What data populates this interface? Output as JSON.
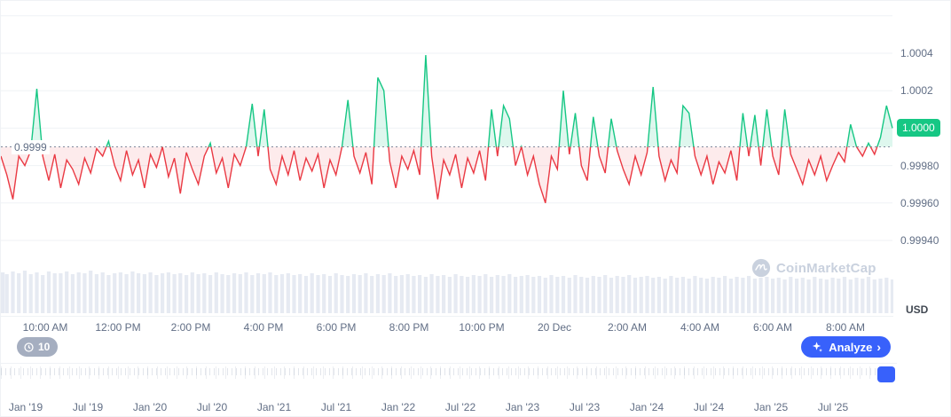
{
  "chart_data": {
    "type": "line",
    "unit_label": "USD",
    "baseline": {
      "value": 0.9999,
      "label": "0.9999"
    },
    "current_price": {
      "value": 1.0,
      "label": "1.0000"
    },
    "y_axis": {
      "labels": [
        {
          "value": 1.0004,
          "text": "1.0004"
        },
        {
          "value": 1.0002,
          "text": "1.0002"
        },
        {
          "value": 0.9998,
          "text": "0.99980"
        },
        {
          "value": 0.9996,
          "text": "0.99960"
        },
        {
          "value": 0.9994,
          "text": "0.99940"
        }
      ],
      "gridline_values": [
        1.0006,
        1.0004,
        1.0002,
        1.0,
        0.9998,
        0.9996,
        0.9994
      ]
    },
    "x_ticks": [
      "10:00 AM",
      "12:00 PM",
      "2:00 PM",
      "4:00 PM",
      "6:00 PM",
      "8:00 PM",
      "10:00 PM",
      "20 Dec",
      "2:00 AM",
      "4:00 AM",
      "6:00 AM",
      "8:00 AM"
    ],
    "ylim": [
      0.9992,
      1.0006
    ],
    "prices": [
      0.99985,
      0.99975,
      0.99962,
      0.99985,
      0.9998,
      0.99988,
      1.00021,
      0.99985,
      0.99972,
      0.99986,
      0.99968,
      0.99983,
      0.99978,
      0.9997,
      0.99984,
      0.99976,
      0.99989,
      0.99985,
      0.99993,
      0.9998,
      0.99972,
      0.99988,
      0.99975,
      0.99983,
      0.99968,
      0.99986,
      0.99979,
      0.9999,
      0.99974,
      0.99984,
      0.99965,
      0.99987,
      0.99978,
      0.9997,
      0.99985,
      0.99992,
      0.99976,
      0.99984,
      0.99968,
      0.99986,
      0.9998,
      0.9999,
      1.00013,
      0.99985,
      1.0001,
      0.99978,
      0.9997,
      0.99985,
      0.99975,
      0.99988,
      0.99972,
      0.99984,
      0.99977,
      0.99986,
      0.99968,
      0.99983,
      0.99975,
      0.9999,
      1.00015,
      0.99985,
      0.99976,
      0.99987,
      0.9997,
      1.00027,
      1.0002,
      0.99982,
      0.99968,
      0.99985,
      0.99978,
      0.99988,
      0.99975,
      1.00039,
      0.99985,
      0.99962,
      0.99983,
      0.99975,
      0.99986,
      0.99968,
      0.99984,
      0.99976,
      0.99988,
      0.99972,
      1.0001,
      0.99985,
      1.00012,
      1.00005,
      0.9998,
      0.9999,
      0.99975,
      0.99985,
      0.9997,
      0.9996,
      0.99985,
      0.99978,
      1.0002,
      0.99986,
      1.00008,
      0.9998,
      0.99972,
      1.00006,
      0.99985,
      0.99976,
      1.00005,
      0.99988,
      0.99978,
      0.9997,
      0.99985,
      0.99975,
      0.99987,
      1.00022,
      0.99985,
      0.99972,
      0.99983,
      0.99976,
      1.00012,
      1.00008,
      0.99985,
      0.99975,
      0.99985,
      0.9997,
      0.99982,
      0.99976,
      0.99988,
      0.99972,
      1.00008,
      0.99985,
      1.00007,
      0.9998,
      1.0001,
      0.99985,
      0.99975,
      1.0001,
      0.99986,
      0.99978,
      0.9997,
      0.99983,
      0.99975,
      0.99985,
      0.99972,
      0.9998,
      0.99987,
      0.99982,
      1.00002,
      0.9999,
      0.99985,
      0.99992,
      0.99986,
      0.99995,
      1.00012,
      1.0
    ],
    "volumes": [
      46,
      44,
      47,
      45,
      48,
      44,
      46,
      43,
      47,
      45,
      45,
      47,
      44,
      46,
      45,
      48,
      44,
      46,
      43,
      45,
      46,
      44,
      47,
      45,
      44,
      46,
      43,
      45,
      46,
      44,
      45,
      43,
      46,
      44,
      45,
      43,
      46,
      44,
      43,
      45,
      44,
      46,
      43,
      45,
      44,
      46,
      43,
      44,
      45,
      43,
      44,
      42,
      45,
      43,
      44,
      42,
      45,
      43,
      42,
      44,
      43,
      45,
      42,
      44,
      43,
      45,
      42,
      43,
      44,
      42,
      43,
      41,
      44,
      42,
      43,
      41,
      44,
      42,
      41,
      43,
      42,
      44,
      41,
      43,
      42,
      44,
      41,
      42,
      43,
      41,
      42,
      40,
      43,
      41,
      42,
      40,
      43,
      41,
      40,
      42,
      41,
      43,
      40,
      42,
      41,
      43,
      40,
      41,
      42,
      40,
      41,
      39,
      42,
      40,
      41,
      39,
      42,
      40,
      39,
      41,
      40,
      42,
      39,
      41,
      40,
      42,
      39,
      40,
      41,
      39,
      40,
      38,
      41,
      39,
      40,
      38,
      41,
      39,
      38,
      40,
      39,
      41,
      38,
      40,
      39,
      41,
      38,
      39,
      40,
      38
    ],
    "colors": {
      "up": "#16c784",
      "down": "#ea3943",
      "up_fill": "rgba(22,199,132,0.14)",
      "down_fill": "rgba(234,57,67,0.10)",
      "grid": "#eff2f5",
      "volume": "#e6eaf2",
      "baseline": "#808a9d"
    }
  },
  "watermark": {
    "text": "CoinMarketCap"
  },
  "toolbar": {
    "history_count": "10",
    "analyze_label": "Analyze",
    "analyze_chevron": "›"
  },
  "navigator": {
    "dates": [
      "Jan '19",
      "Jul '19",
      "Jan '20",
      "Jul '20",
      "Jan '21",
      "Jul '21",
      "Jan '22",
      "Jul '22",
      "Jan '23",
      "Jul '23",
      "Jan '24",
      "Jul '24",
      "Jan '25",
      "Jul '25"
    ]
  }
}
